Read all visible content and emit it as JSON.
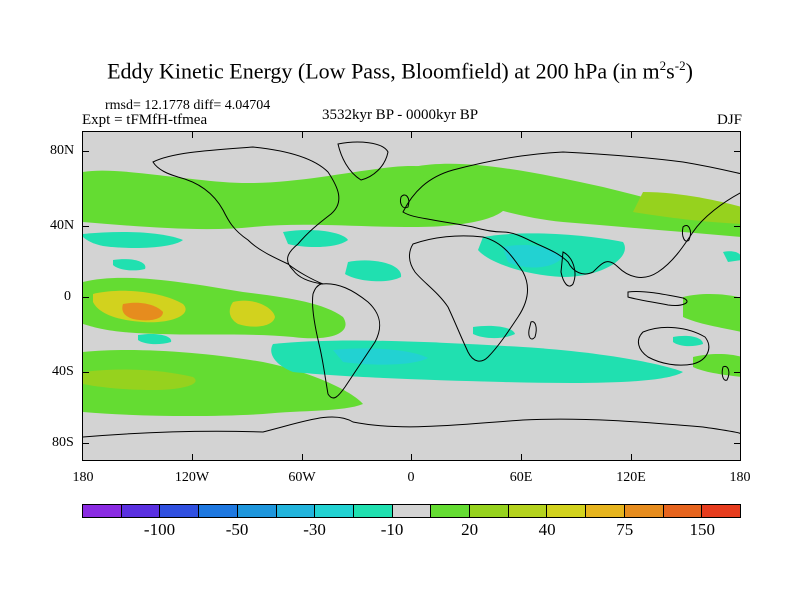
{
  "title": {
    "main": "Eddy Kinetic Energy (Low Pass, Bloomfield) at 200 hPa (in m",
    "sup1": "2",
    "mid": "s",
    "sup2": "-2",
    "end": ")"
  },
  "stats": "rmsd= 12.1778 diff= 4.04704",
  "expt": "Expt = tFMfH-tfmea",
  "period": "3532kyr BP - 0000kyr BP",
  "season": "DJF",
  "lat_labels": [
    "80N",
    "40N",
    "0",
    "40S",
    "80S"
  ],
  "lon_labels": [
    "180",
    "120W",
    "60W",
    "0",
    "60E",
    "120E",
    "180"
  ],
  "colorbar": {
    "colors": [
      "#8a2be2",
      "#5a30e0",
      "#3050e0",
      "#1e78e0",
      "#1e96dc",
      "#22b4dc",
      "#22d2d2",
      "#20e0b0",
      "#d3d3d3",
      "#64dc32",
      "#96d21e",
      "#b4d21e",
      "#d2d21e",
      "#e6b41e",
      "#e68c1e",
      "#e6641e",
      "#e63c1e"
    ],
    "labels": [
      "-100",
      "-50",
      "-30",
      "-10",
      "20",
      "40",
      "75",
      "150"
    ]
  },
  "map": {
    "background_color": "#d3d3d3",
    "land_outline_color": "#000000"
  }
}
